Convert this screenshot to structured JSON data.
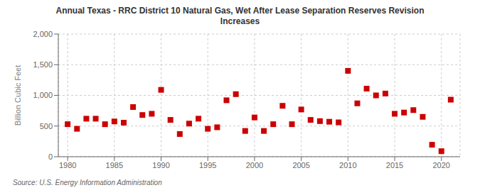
{
  "chart_data": {
    "type": "scatter",
    "title": "Annual Texas - RRC District 10 Natural Gas, Wet After Lease Separation Reserves Revision\nIncreases",
    "ylabel": "Billion Cubic Feet",
    "annotation": "Source: U.S. Energy Information Administration",
    "color": "#cc0000",
    "marker": "square",
    "grid": true,
    "x": [
      1980,
      1981,
      1982,
      1983,
      1984,
      1985,
      1986,
      1987,
      1988,
      1989,
      1990,
      1991,
      1992,
      1993,
      1994,
      1995,
      1996,
      1997,
      1998,
      1999,
      2000,
      2001,
      2002,
      2003,
      2004,
      2005,
      2006,
      2007,
      2008,
      2009,
      2010,
      2011,
      2012,
      2013,
      2014,
      2015,
      2016,
      2017,
      2018,
      2019,
      2020,
      2021
    ],
    "values": [
      530,
      455,
      620,
      620,
      530,
      575,
      555,
      810,
      680,
      700,
      1090,
      600,
      370,
      540,
      620,
      455,
      480,
      920,
      1020,
      420,
      640,
      420,
      530,
      830,
      530,
      770,
      600,
      580,
      570,
      560,
      1400,
      870,
      1110,
      1000,
      1030,
      700,
      720,
      760,
      650,
      195,
      90,
      930
    ],
    "xlim": [
      1979,
      2022
    ],
    "ylim": [
      0,
      2000
    ],
    "xticks": [
      1980,
      1985,
      1990,
      1995,
      2000,
      2005,
      2010,
      2015,
      2020
    ],
    "yticks": [
      0,
      500,
      {
        "value": 1000,
        "label": "1,000"
      },
      {
        "value": 1500,
        "label": "1,500"
      },
      {
        "value": 2000,
        "label": "2,000"
      }
    ]
  }
}
